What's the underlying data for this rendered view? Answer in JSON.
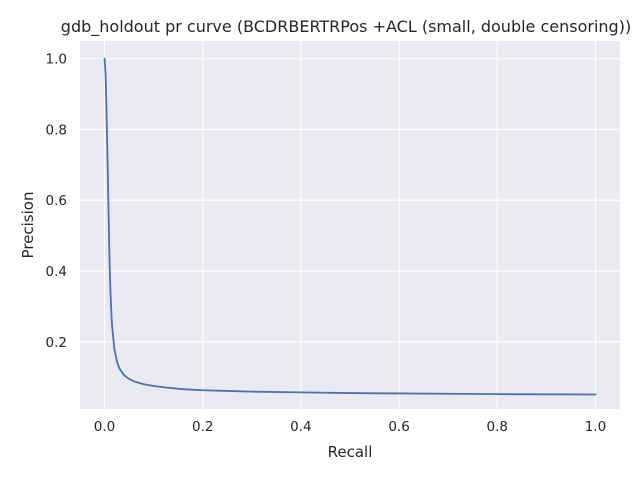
{
  "chart_data": {
    "type": "line",
    "title": "gdb_holdout pr curve (BCDRBERTRPos +ACL (small, double censoring))",
    "xlabel": "Recall",
    "ylabel": "Precision",
    "xlim": [
      -0.05,
      1.05
    ],
    "ylim": [
      0.01,
      1.05
    ],
    "xticks": [
      "0.0",
      "0.2",
      "0.4",
      "0.6",
      "0.8",
      "1.0"
    ],
    "yticks": [
      "0.2",
      "0.4",
      "0.6",
      "0.8",
      "1.0"
    ],
    "grid": true,
    "background": "#eaeaf2",
    "series": [
      {
        "color": "#4c72b0",
        "x": [
          0.0,
          0.002,
          0.004,
          0.006,
          0.008,
          0.01,
          0.012,
          0.015,
          0.02,
          0.025,
          0.03,
          0.04,
          0.05,
          0.06,
          0.08,
          0.1,
          0.13,
          0.16,
          0.2,
          0.25,
          0.3,
          0.4,
          0.5,
          0.6,
          0.7,
          0.8,
          0.9,
          1.0
        ],
        "y": [
          1.0,
          0.96,
          0.85,
          0.72,
          0.58,
          0.44,
          0.34,
          0.25,
          0.18,
          0.145,
          0.125,
          0.105,
          0.095,
          0.088,
          0.08,
          0.075,
          0.07,
          0.066,
          0.063,
          0.061,
          0.059,
          0.057,
          0.055,
          0.054,
          0.053,
          0.052,
          0.0515,
          0.051
        ]
      }
    ]
  }
}
